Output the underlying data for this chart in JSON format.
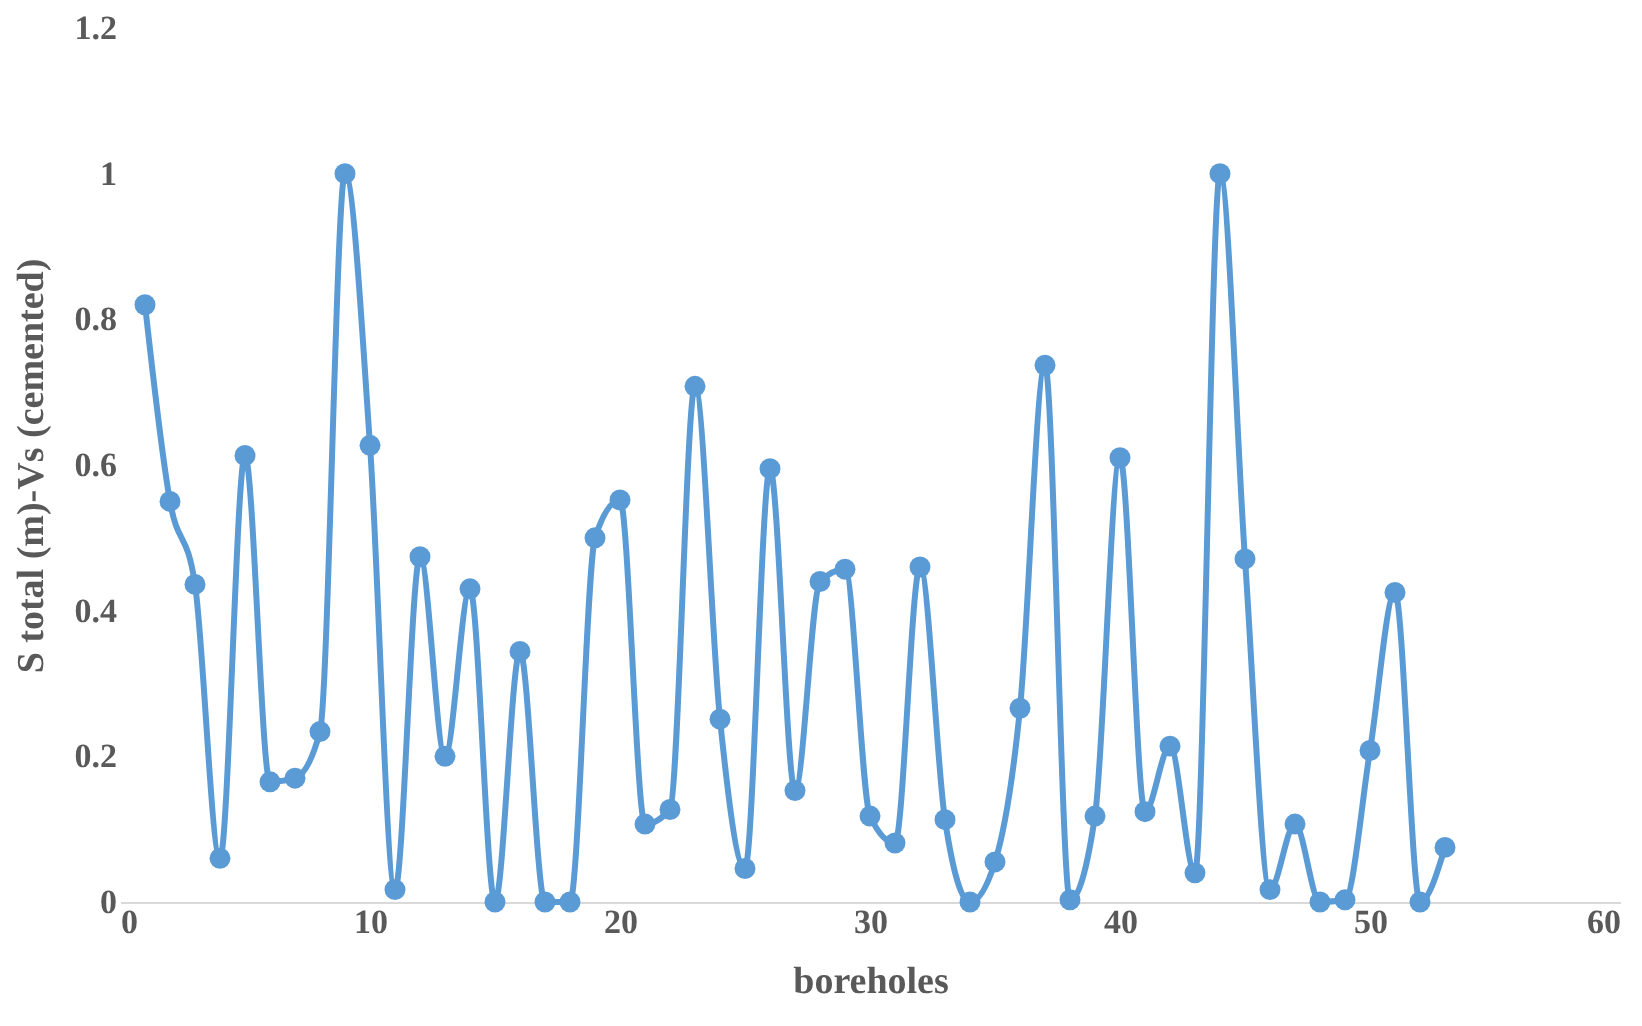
{
  "chart_data": {
    "type": "line",
    "xlabel": "boreholes",
    "ylabel": "S total (m)-Vs (cemented)",
    "x": [
      1,
      2,
      3,
      4,
      5,
      6,
      7,
      8,
      9,
      10,
      11,
      12,
      13,
      14,
      15,
      16,
      17,
      18,
      19,
      20,
      21,
      22,
      23,
      24,
      25,
      26,
      27,
      28,
      29,
      30,
      31,
      32,
      33,
      34,
      35,
      36,
      37,
      38,
      39,
      40,
      41,
      42,
      43,
      44,
      45,
      46,
      47,
      48,
      49,
      50,
      51,
      52,
      53
    ],
    "series": [
      {
        "color": "#5b9bd5",
        "values": [
          0.82,
          0.55,
          0.436,
          0.06,
          0.613,
          0.165,
          0.17,
          0.234,
          1.0,
          0.627,
          0.017,
          0.474,
          0.2,
          0.43,
          0.0,
          0.344,
          0.0,
          0.0,
          0.5,
          0.552,
          0.107,
          0.127,
          0.708,
          0.251,
          0.046,
          0.595,
          0.153,
          0.44,
          0.457,
          0.118,
          0.081,
          0.46,
          0.113,
          0.0,
          0.055,
          0.266,
          0.737,
          0.003,
          0.118,
          0.61,
          0.124,
          0.214,
          0.04,
          1.0,
          0.471,
          0.017,
          0.107,
          0.0,
          0.003,
          0.208,
          0.425,
          0.0,
          0.075
        ]
      }
    ],
    "xlim": [
      0,
      60
    ],
    "xticks": [
      0,
      10,
      20,
      30,
      40,
      50,
      60
    ],
    "ylim": [
      0,
      1.2
    ],
    "yticks": [
      0,
      0.2,
      0.4,
      0.6,
      0.8,
      1,
      1.2
    ],
    "marker": "circle",
    "line_style": "solid",
    "grid": false,
    "legend": false
  }
}
